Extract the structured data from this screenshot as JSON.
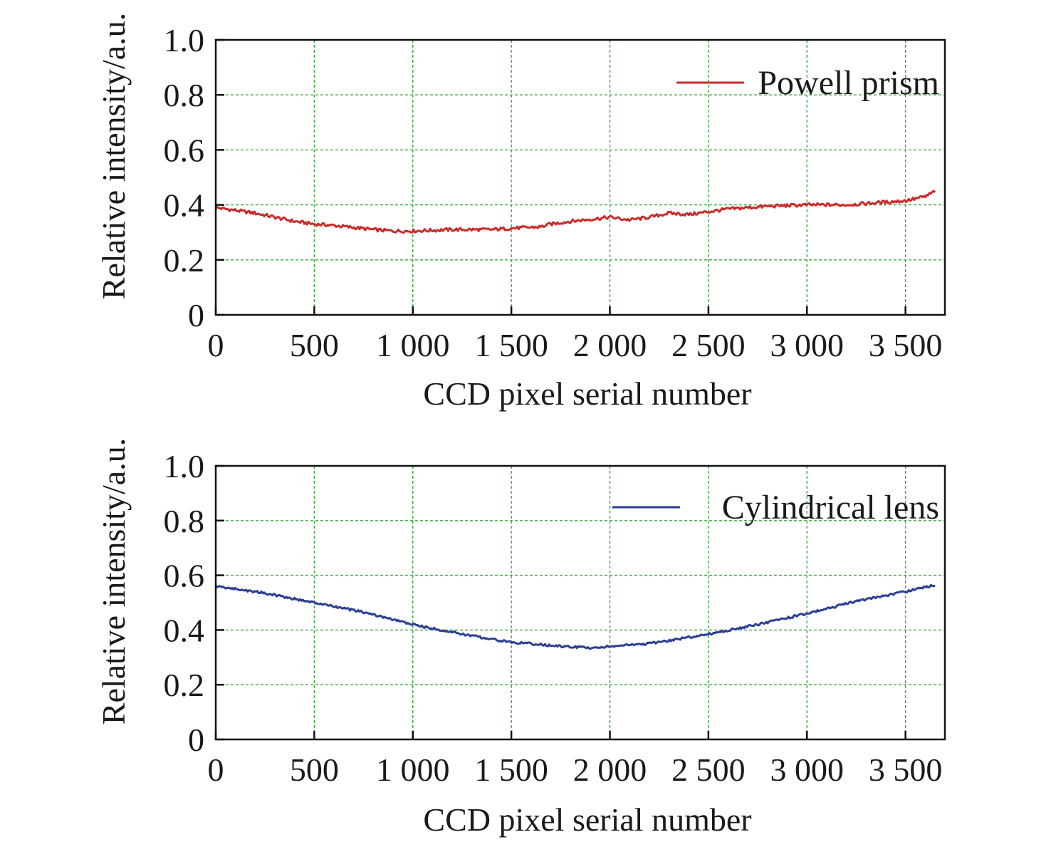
{
  "chart_data": [
    {
      "type": "line",
      "xlabel": "CCD pixel serial number",
      "ylabel": "Relative intensity/a.u.",
      "xlim": [
        0,
        3700
      ],
      "ylim": [
        0,
        1.0
      ],
      "x_ticks": [
        0,
        500,
        1000,
        1500,
        2000,
        2500,
        3000,
        3500
      ],
      "x_tick_labels": [
        "0",
        "500",
        "1 000",
        "1 500",
        "2 000",
        "2 500",
        "3 000",
        "3 500"
      ],
      "y_ticks": [
        0,
        0.2,
        0.4,
        0.6,
        0.8,
        1.0
      ],
      "y_tick_labels": [
        "0",
        "0.2",
        "0.4",
        "0.6",
        "0.8",
        "1.0"
      ],
      "grid": true,
      "legend_position": "top-right",
      "series": [
        {
          "name": "Powell prism",
          "color": "#cc2a2a",
          "x": [
            0,
            200,
            400,
            500,
            600,
            800,
            900,
            1000,
            1200,
            1400,
            1500,
            1650,
            1700,
            1800,
            2000,
            2100,
            2200,
            2300,
            2400,
            2500,
            2600,
            2800,
            3000,
            3200,
            3400,
            3500,
            3600,
            3650
          ],
          "y": [
            0.39,
            0.37,
            0.34,
            0.33,
            0.325,
            0.31,
            0.305,
            0.305,
            0.31,
            0.31,
            0.315,
            0.32,
            0.33,
            0.34,
            0.355,
            0.345,
            0.355,
            0.37,
            0.365,
            0.375,
            0.385,
            0.395,
            0.4,
            0.4,
            0.41,
            0.415,
            0.43,
            0.45
          ]
        }
      ]
    },
    {
      "type": "line",
      "xlabel": "CCD pixel serial number",
      "ylabel": "Relative intensity/a.u.",
      "xlim": [
        0,
        3700
      ],
      "ylim": [
        0,
        1.0
      ],
      "x_ticks": [
        0,
        500,
        1000,
        1500,
        2000,
        2500,
        3000,
        3500
      ],
      "x_tick_labels": [
        "0",
        "500",
        "1 000",
        "1 500",
        "2 000",
        "2 500",
        "3 000",
        "3 500"
      ],
      "y_ticks": [
        0,
        0.2,
        0.4,
        0.6,
        0.8,
        1.0
      ],
      "y_tick_labels": [
        "0",
        "0.2",
        "0.4",
        "0.6",
        "0.8",
        "1.0"
      ],
      "grid": true,
      "legend_position": "top-right",
      "series": [
        {
          "name": "Cylindrical lens",
          "color": "#2b3f96",
          "x": [
            0,
            250,
            500,
            750,
            1000,
            1250,
            1500,
            1600,
            1750,
            1900,
            2000,
            2200,
            2500,
            2750,
            3000,
            3250,
            3500,
            3650
          ],
          "y": [
            0.56,
            0.535,
            0.5,
            0.465,
            0.42,
            0.385,
            0.355,
            0.35,
            0.34,
            0.335,
            0.34,
            0.35,
            0.385,
            0.42,
            0.46,
            0.505,
            0.54,
            0.565
          ]
        }
      ]
    }
  ]
}
